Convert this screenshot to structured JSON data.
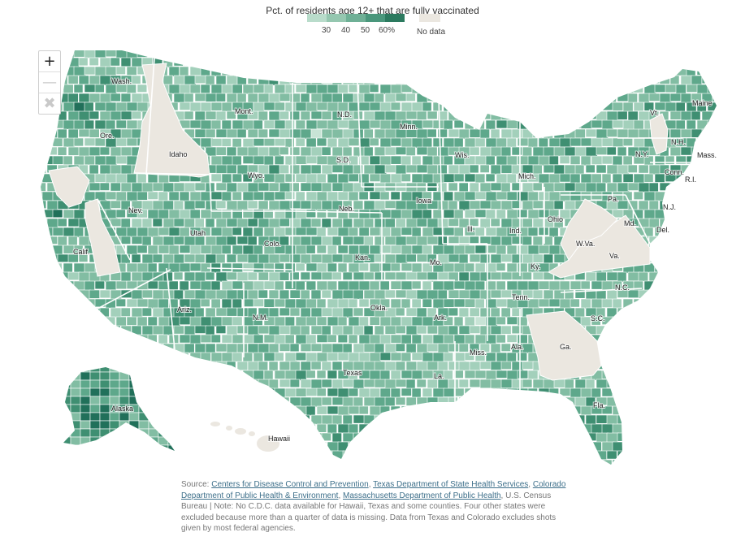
{
  "legend": {
    "title": "Pct. of residents age 12+ that are fully vaccinated",
    "ticks": [
      "30",
      "40",
      "50",
      "60%"
    ],
    "no_data_label": "No data",
    "colors": [
      "#b9dccb",
      "#95c7b0",
      "#6fb096",
      "#4a977c",
      "#2c7a5f"
    ],
    "no_data_color": "#ebe7e0"
  },
  "zoom": {
    "in_icon": "+",
    "out_icon": "—",
    "reset_icon": "✖"
  },
  "map_colors": {
    "very_light": "#c8e4d6",
    "light": "#a3d0bb",
    "mid_light": "#82bda3",
    "mid": "#5ea88b",
    "mid_dark": "#3f8f72",
    "dark": "#21705a",
    "no_data": "#ebe7e0",
    "border": "#ffffff"
  },
  "state_labels": [
    "Wash.",
    "Ore.",
    "Calif.",
    "Nev.",
    "Idaho",
    "Mont.",
    "Wyo.",
    "Utah",
    "Colo.",
    "Ariz.",
    "N.M.",
    "N.D.",
    "S.D.",
    "Neb.",
    "Kan.",
    "Okla.",
    "Texas",
    "Minn.",
    "Iowa",
    "Mo.",
    "Ark.",
    "La.",
    "Wis.",
    "Ill.",
    "Mich.",
    "Ind.",
    "Ohio",
    "Ky.",
    "Tenn.",
    "Miss.",
    "Ala.",
    "Ga.",
    "Fla.",
    "S.C.",
    "N.C.",
    "Va.",
    "W.Va.",
    "Pa.",
    "N.Y.",
    "Vt.",
    "N.H.",
    "Maine",
    "Mass.",
    "Conn.",
    "R.I.",
    "N.J.",
    "Md.",
    "Del.",
    "Alaska",
    "Hawaii"
  ],
  "source": {
    "prefix": "Source: ",
    "links": [
      "Centers for Disease Control and Prevention",
      "Texas Department of State Health Services",
      "Colorado Department of Public Health & Environment",
      "Massachusetts Department of Public Health"
    ],
    "sep1": ", ",
    "sep2": ", ",
    "sep3": ", ",
    "tail": ", U.S. Census Bureau | Note: No C.D.C. data available for Hawaii, Texas and some counties. Four other states were excluded because more than a quarter of data is missing. Data from Texas and Colorado excludes shots given by most federal agencies."
  }
}
